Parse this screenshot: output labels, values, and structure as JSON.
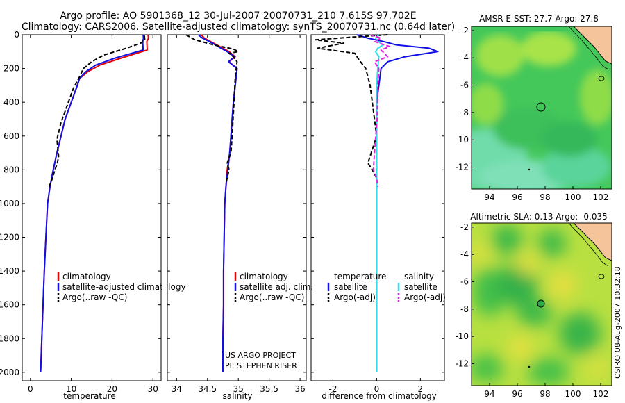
{
  "title": {
    "line1": "Argo profile: AO 5901368_12 30-Jul-2007 20070731_210 7.615S 97.702E",
    "line2": "Climatology: CARS2006. Satellite-adjusted climatology: synTS_20070731.nc (0.64d later)"
  },
  "credit": {
    "project": "US ARGO PROJECT",
    "pi": "PI: STEPHEN RISER",
    "csiro": "CSIRO 08-Aug-2007 10:32:18"
  },
  "colors": {
    "climatology": "#e60000",
    "satellite": "#1010e6",
    "argo": "#000000",
    "satellite_diff": "#33dde6",
    "argo_diff_sal": "#e020e0",
    "land": "#f5c49a"
  },
  "chart_data": [
    {
      "type": "line",
      "title": "",
      "xlabel": "temperature",
      "ylabel": "",
      "xlim": [
        -2,
        32
      ],
      "ylim": [
        2050,
        0
      ],
      "xticks": [
        0,
        10,
        20,
        30
      ],
      "yticks": [
        0,
        200,
        400,
        600,
        800,
        1000,
        1200,
        1400,
        1600,
        1800,
        2000
      ],
      "legend": [
        "climatology",
        "satellite-adjusted climatology",
        "Argo(..raw -QC)"
      ],
      "series": [
        {
          "name": "climatology",
          "x": [
            28.8,
            28.9,
            28.5,
            28.6,
            22,
            17,
            14,
            12,
            11.5,
            10,
            8.5,
            7.5,
            6.5,
            5.6,
            4.8,
            4.2,
            3.8,
            3.4,
            3.1,
            2.8,
            2.5
          ],
          "y": [
            0,
            20,
            40,
            90,
            140,
            180,
            220,
            260,
            300,
            400,
            500,
            600,
            700,
            800,
            900,
            1000,
            1200,
            1400,
            1600,
            1800,
            2000
          ]
        },
        {
          "name": "satellite-adjusted climatology",
          "x": [
            27.6,
            27.7,
            27.5,
            27.6,
            20.5,
            16,
            13.5,
            12,
            11.5,
            10,
            8.5,
            7.5,
            6.5,
            5.6,
            4.8,
            4.2,
            3.8,
            3.4,
            3.1,
            2.8,
            2.5
          ],
          "y": [
            0,
            20,
            40,
            90,
            140,
            180,
            220,
            260,
            300,
            400,
            500,
            600,
            700,
            800,
            900,
            1000,
            1200,
            1400,
            1600,
            1800,
            2000
          ]
        },
        {
          "name": "Argo(..raw -QC)",
          "x": [
            27.9,
            28.0,
            27.0,
            23.5,
            18,
            15,
            13,
            12,
            10.5,
            9,
            7.5,
            6.5,
            6.9,
            6.6,
            6.0,
            5.4,
            4.6
          ],
          "y": [
            5,
            30,
            50,
            80,
            120,
            160,
            200,
            250,
            320,
            420,
            520,
            620,
            720,
            760,
            800,
            850,
            900
          ]
        }
      ]
    },
    {
      "type": "line",
      "title": "",
      "xlabel": "salinity",
      "ylabel": "",
      "xlim": [
        33.85,
        36.1
      ],
      "ylim": [
        2050,
        0
      ],
      "xticks": [
        34,
        34.5,
        35,
        35.5,
        36
      ],
      "xticklabels": [
        "34",
        "34.5",
        "35",
        "35.5",
        "36"
      ],
      "legend": [
        "climatology",
        "satellite adj. clim.",
        "Argo(..raw -QC)"
      ],
      "series": [
        {
          "name": "climatology",
          "x": [
            34.4,
            34.45,
            34.6,
            34.75,
            34.85,
            34.95,
            34.85,
            34.98,
            34.95,
            34.92,
            34.9,
            34.88,
            34.86,
            34.82,
            34.8,
            34.78,
            34.77,
            34.76,
            34.76,
            34.75,
            34.75
          ],
          "y": [
            0,
            20,
            50,
            80,
            100,
            130,
            160,
            200,
            300,
            400,
            500,
            600,
            700,
            800,
            900,
            1000,
            1200,
            1400,
            1600,
            1800,
            2000
          ]
        },
        {
          "name": "satellite adj. clim.",
          "x": [
            34.35,
            34.42,
            34.58,
            34.72,
            34.82,
            34.94,
            34.84,
            34.98,
            34.95,
            34.92,
            34.9,
            34.88,
            34.86,
            34.83,
            34.8,
            34.78,
            34.77,
            34.76,
            34.76,
            34.75,
            34.75
          ],
          "y": [
            0,
            20,
            50,
            80,
            100,
            130,
            160,
            200,
            300,
            400,
            500,
            600,
            700,
            800,
            900,
            1000,
            1200,
            1400,
            1600,
            1800,
            2000
          ]
        },
        {
          "name": "Argo(..raw -QC)",
          "x": [
            34.15,
            34.3,
            34.6,
            34.92,
            35.0,
            34.85,
            34.92,
            34.98,
            34.95,
            34.93,
            34.9,
            34.88,
            34.82,
            34.85,
            34.8
          ],
          "y": [
            0,
            30,
            60,
            85,
            100,
            110,
            130,
            160,
            250,
            400,
            600,
            700,
            760,
            800,
            880
          ]
        }
      ]
    },
    {
      "type": "line",
      "title": "",
      "xlabel": "difference from climatology",
      "ylabel": "",
      "xlim": [
        -3,
        3.1
      ],
      "ylim": [
        2050,
        0
      ],
      "xticks": [
        -2,
        0,
        2
      ],
      "legend": [
        "temperature",
        "satellite",
        "Argo(-adj)",
        "salinity",
        "satellite",
        "Argo(-adj)"
      ],
      "series": [
        {
          "name": "temperature satellite",
          "x": [
            -0.9,
            -0.4,
            0.3,
            0.9,
            2.4,
            2.8,
            2.3,
            1.3,
            0.5,
            0.2,
            0.1,
            0,
            0,
            0,
            0,
            0,
            0
          ],
          "y": [
            0,
            20,
            40,
            60,
            80,
            100,
            110,
            130,
            160,
            200,
            300,
            400,
            600,
            800,
            1000,
            1500,
            2000
          ]
        },
        {
          "name": "temperature Argo(-adj)",
          "x": [
            0.5,
            -1.2,
            -2.8,
            -1.5,
            -2.7,
            -1.0,
            -0.8,
            -0.5,
            -0.3,
            -0.1,
            0,
            -0.3,
            -0.4,
            -0.2,
            0
          ],
          "y": [
            0,
            15,
            30,
            50,
            80,
            110,
            150,
            200,
            300,
            500,
            600,
            720,
            760,
            800,
            850
          ]
        },
        {
          "name": "salinity satellite",
          "x": [
            0.1,
            -0.05,
            0.05,
            0.3,
            0.05,
            -0.05,
            0.1,
            0.05,
            0,
            0,
            0,
            0,
            0
          ],
          "y": [
            0,
            20,
            40,
            60,
            80,
            100,
            130,
            200,
            300,
            500,
            1000,
            1500,
            2000
          ]
        },
        {
          "name": "salinity Argo(-adj)",
          "x": [
            -0.3,
            0.2,
            -0.1,
            0.6,
            0.2,
            0.5,
            -0.1,
            0.1,
            0.05,
            0.02,
            -0.1,
            -0.15,
            0,
            0.05
          ],
          "y": [
            0,
            20,
            40,
            70,
            90,
            130,
            160,
            200,
            300,
            500,
            700,
            800,
            850,
            900
          ]
        }
      ]
    },
    {
      "type": "heatmap",
      "title": "AMSR-E SST: 27.7  Argo: 27.8",
      "xlabel": "",
      "ylabel": "",
      "xlim": [
        92.7,
        102.8
      ],
      "ylim": [
        -13.6,
        -1.7
      ],
      "xticks": [
        94,
        96,
        98,
        100,
        102
      ],
      "yticks": [
        -2,
        -4,
        -6,
        -8,
        -10,
        -12
      ],
      "marker": {
        "lon": 97.7,
        "lat": -7.6
      }
    },
    {
      "type": "heatmap",
      "title": "Altimetric SLA: 0.13  Argo: -0.035",
      "xlabel": "",
      "ylabel": "",
      "xlim": [
        92.7,
        102.8
      ],
      "ylim": [
        -13.6,
        -1.7
      ],
      "xticks": [
        94,
        96,
        98,
        100,
        102
      ],
      "yticks": [
        -2,
        -4,
        -6,
        -8,
        -10,
        -12
      ],
      "marker": {
        "lon": 97.7,
        "lat": -7.6
      }
    }
  ]
}
